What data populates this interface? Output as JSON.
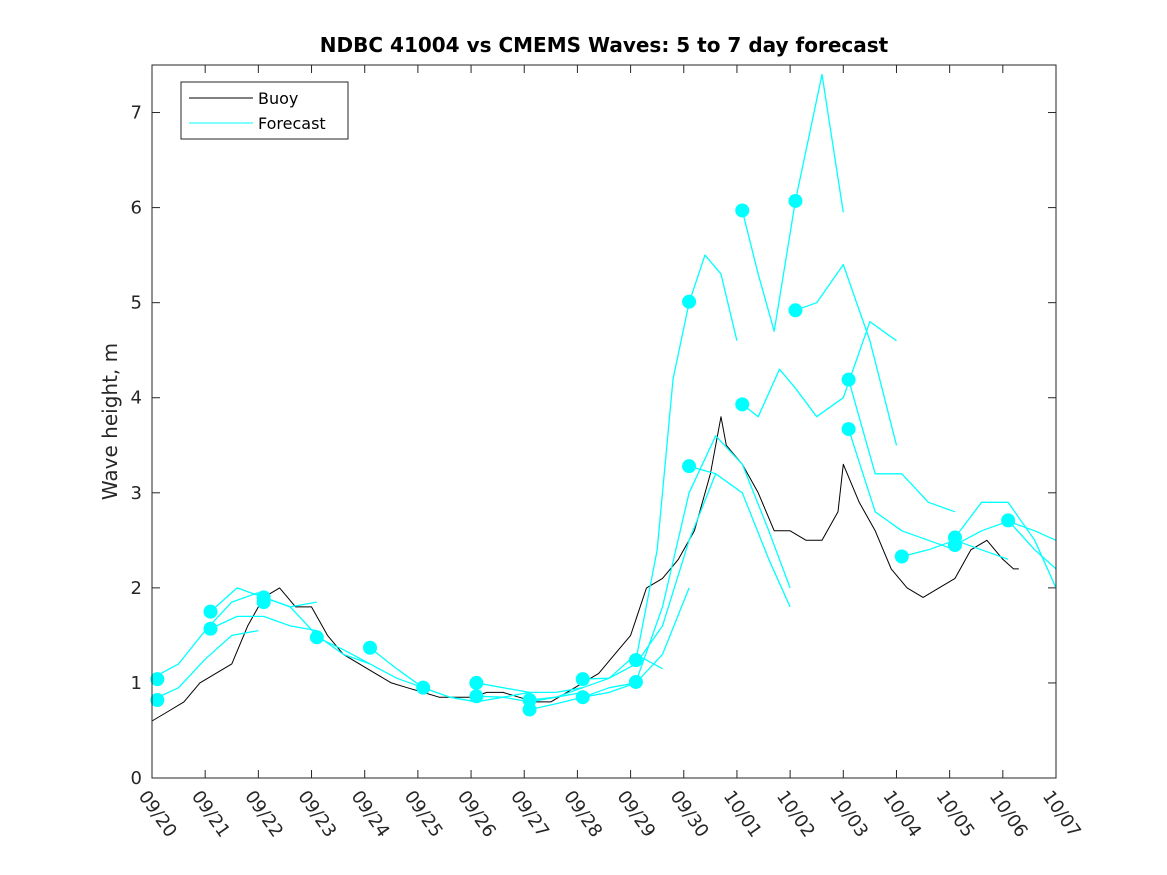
{
  "chart_data": {
    "type": "line",
    "title": "NDBC 41004 vs CMEMS Waves: 5 to 7 day forecast",
    "xlabel": "",
    "ylabel": "Wave height, m",
    "xlim": [
      0,
      17
    ],
    "ylim": [
      0,
      7.5
    ],
    "x_tick_values": [
      0,
      1,
      2,
      3,
      4,
      5,
      6,
      7,
      8,
      9,
      10,
      11,
      12,
      13,
      14,
      15,
      16,
      17
    ],
    "x_tick_labels": [
      "09/20",
      "09/21",
      "09/22",
      "09/23",
      "09/24",
      "09/25",
      "09/26",
      "09/27",
      "09/28",
      "09/29",
      "09/30",
      "10/01",
      "10/02",
      "10/03",
      "10/04",
      "10/05",
      "10/06",
      "10/07"
    ],
    "y_tick_values": [
      0,
      1,
      2,
      3,
      4,
      5,
      6,
      7
    ],
    "y_tick_labels": [
      "0",
      "1",
      "2",
      "3",
      "4",
      "5",
      "6",
      "7"
    ],
    "legend": {
      "position": "top-left",
      "entries": [
        {
          "label": "Buoy",
          "color": "#000000"
        },
        {
          "label": "Forecast",
          "color": "#00ffff"
        }
      ]
    },
    "colors": {
      "buoy": "#000000",
      "forecast": "#00ffff"
    },
    "series": [
      {
        "name": "Buoy",
        "x": [
          0.0,
          0.3,
          0.6,
          0.9,
          1.2,
          1.5,
          1.8,
          2.1,
          2.4,
          2.7,
          3.0,
          3.3,
          3.6,
          3.9,
          4.2,
          4.5,
          4.8,
          5.1,
          5.4,
          5.7,
          6.0,
          6.3,
          6.6,
          6.9,
          7.2,
          7.5,
          7.8,
          8.1,
          8.4,
          8.7,
          9.0,
          9.3,
          9.6,
          9.9,
          10.2,
          10.5,
          10.7,
          10.8,
          11.1,
          11.4,
          11.7,
          12.0,
          12.3,
          12.6,
          12.9,
          13.0,
          13.3,
          13.6,
          13.9,
          14.2,
          14.5,
          14.8,
          15.1,
          15.4,
          15.7,
          16.0,
          16.2,
          16.3
        ],
        "values": [
          0.6,
          0.7,
          0.8,
          1.0,
          1.1,
          1.2,
          1.6,
          1.9,
          2.0,
          1.8,
          1.8,
          1.5,
          1.3,
          1.2,
          1.1,
          1.0,
          0.95,
          0.9,
          0.85,
          0.85,
          0.85,
          0.9,
          0.9,
          0.85,
          0.8,
          0.8,
          0.9,
          1.0,
          1.1,
          1.3,
          1.5,
          2.0,
          2.1,
          2.3,
          2.6,
          3.2,
          3.8,
          3.5,
          3.3,
          3.0,
          2.6,
          2.6,
          2.5,
          2.5,
          2.8,
          3.3,
          2.9,
          2.6,
          2.2,
          2.0,
          1.9,
          2.0,
          2.1,
          2.4,
          2.5,
          2.3,
          2.2,
          2.2
        ]
      },
      {
        "name": "Forecast",
        "x": [
          0.0,
          0.5,
          1.0,
          1.5,
          2.0
        ],
        "values": [
          1.05,
          1.2,
          1.55,
          1.85,
          1.95
        ]
      },
      {
        "name": "Forecast",
        "x": [
          0.0,
          0.5,
          1.0,
          1.5,
          2.0
        ],
        "values": [
          0.82,
          0.95,
          1.25,
          1.5,
          1.55
        ]
      },
      {
        "name": "Forecast",
        "x": [
          1.1,
          1.6,
          2.1,
          2.6,
          3.1
        ],
        "values": [
          1.75,
          2.0,
          1.9,
          1.8,
          1.85
        ]
      },
      {
        "name": "Forecast",
        "x": [
          1.1,
          1.6,
          2.1,
          2.6,
          3.1
        ],
        "values": [
          1.57,
          1.7,
          1.7,
          1.6,
          1.55
        ]
      },
      {
        "name": "Forecast",
        "x": [
          2.1,
          2.6,
          3.1,
          3.6,
          4.1
        ],
        "values": [
          1.9,
          1.8,
          1.5,
          1.3,
          1.2
        ]
      },
      {
        "name": "Forecast",
        "x": [
          3.1,
          3.6,
          4.1,
          4.6,
          5.1
        ],
        "values": [
          1.48,
          1.35,
          1.2,
          1.05,
          0.95
        ]
      },
      {
        "name": "Forecast",
        "x": [
          4.1,
          4.6,
          5.1,
          5.6,
          6.1
        ],
        "values": [
          1.37,
          1.15,
          0.95,
          0.85,
          0.8
        ]
      },
      {
        "name": "Forecast",
        "x": [
          5.1,
          5.6,
          6.1,
          6.6,
          7.1
        ],
        "values": [
          0.95,
          0.85,
          0.8,
          0.85,
          0.9
        ]
      },
      {
        "name": "Forecast",
        "x": [
          6.1,
          6.6,
          7.1,
          7.6,
          8.1
        ],
        "values": [
          1.0,
          0.95,
          0.9,
          0.9,
          0.95
        ]
      },
      {
        "name": "Forecast",
        "x": [
          6.1,
          6.6,
          7.1,
          7.6,
          8.1
        ],
        "values": [
          0.86,
          0.85,
          0.8,
          0.85,
          0.9
        ]
      },
      {
        "name": "Forecast",
        "x": [
          7.1,
          7.6,
          8.1,
          8.6,
          9.1,
          9.6
        ],
        "values": [
          0.82,
          0.85,
          0.95,
          1.05,
          1.3,
          1.15
        ]
      },
      {
        "name": "Forecast",
        "x": [
          7.1,
          7.6,
          8.1,
          8.6,
          9.1
        ],
        "values": [
          0.72,
          0.78,
          0.85,
          0.95,
          1.0
        ]
      },
      {
        "name": "Forecast",
        "x": [
          8.1,
          8.6,
          9.1,
          9.6,
          10.1,
          10.6
        ],
        "values": [
          1.04,
          1.05,
          1.2,
          1.6,
          2.5,
          3.2
        ]
      },
      {
        "name": "Forecast",
        "x": [
          8.1,
          8.6,
          9.1,
          9.6,
          10.1
        ],
        "values": [
          0.85,
          0.9,
          1.0,
          1.3,
          2.0
        ]
      },
      {
        "name": "Forecast",
        "x": [
          9.1,
          9.5,
          9.8,
          10.1,
          10.4,
          10.7,
          11.0
        ],
        "values": [
          1.24,
          2.4,
          4.2,
          5.0,
          5.5,
          5.3,
          4.6
        ]
      },
      {
        "name": "Forecast",
        "x": [
          9.1,
          9.6,
          10.1,
          10.6,
          11.1,
          11.6,
          12.0
        ],
        "values": [
          1.01,
          1.8,
          3.0,
          3.6,
          3.3,
          2.6,
          2.0
        ]
      },
      {
        "name": "Forecast",
        "x": [
          10.1,
          10.6,
          11.1,
          11.6,
          12.0
        ],
        "values": [
          3.28,
          3.2,
          3.0,
          2.3,
          1.8
        ]
      },
      {
        "name": "Forecast",
        "x": [
          11.1,
          11.4,
          11.7,
          12.1,
          12.6,
          13.0
        ],
        "values": [
          5.97,
          5.3,
          4.7,
          6.07,
          7.4,
          5.95
        ]
      },
      {
        "name": "Forecast",
        "x": [
          11.1,
          11.4,
          11.8,
          12.1,
          12.5,
          13.0,
          13.5,
          14.0
        ],
        "values": [
          3.93,
          3.8,
          4.3,
          4.1,
          3.8,
          4.0,
          4.8,
          4.6
        ]
      },
      {
        "name": "Forecast",
        "x": [
          12.1,
          12.5,
          13.0,
          13.5,
          14.0
        ],
        "values": [
          4.92,
          5.0,
          5.4,
          4.6,
          3.5
        ]
      },
      {
        "name": "Forecast",
        "x": [
          13.1,
          13.6,
          14.1,
          14.6,
          15.1
        ],
        "values": [
          4.19,
          3.2,
          3.2,
          2.9,
          2.8
        ]
      },
      {
        "name": "Forecast",
        "x": [
          13.1,
          13.6,
          14.1,
          14.6,
          15.1
        ],
        "values": [
          3.67,
          2.8,
          2.6,
          2.5,
          2.4
        ]
      },
      {
        "name": "Forecast",
        "x": [
          14.1,
          14.6,
          15.1,
          15.6,
          16.1
        ],
        "values": [
          2.33,
          2.4,
          2.5,
          2.4,
          2.3
        ]
      },
      {
        "name": "Forecast",
        "x": [
          15.1,
          15.6,
          16.1,
          16.6,
          17.0
        ],
        "values": [
          2.53,
          2.9,
          2.9,
          2.5,
          2.0
        ]
      },
      {
        "name": "Forecast",
        "x": [
          15.1,
          15.6,
          16.1,
          16.6,
          17.0
        ],
        "values": [
          2.45,
          2.6,
          2.7,
          2.6,
          2.5
        ]
      },
      {
        "name": "Forecast",
        "x": [
          16.1,
          16.6,
          17.0
        ],
        "values": [
          2.71,
          2.4,
          2.2
        ]
      }
    ],
    "markers": {
      "name": "Forecast start",
      "x": [
        0.1,
        0.1,
        1.1,
        1.1,
        2.1,
        2.1,
        3.1,
        4.1,
        5.1,
        6.1,
        6.1,
        7.1,
        7.1,
        8.1,
        8.1,
        9.1,
        9.1,
        10.1,
        10.1,
        11.1,
        11.1,
        12.1,
        12.1,
        13.1,
        13.1,
        14.1,
        15.1,
        15.1,
        16.1
      ],
      "values": [
        1.04,
        0.82,
        1.75,
        1.57,
        1.9,
        1.85,
        1.48,
        1.37,
        0.95,
        1.0,
        0.86,
        0.82,
        0.72,
        1.04,
        0.85,
        1.24,
        1.01,
        5.01,
        3.28,
        5.97,
        3.93,
        6.07,
        4.92,
        4.19,
        3.67,
        2.33,
        2.53,
        2.45,
        2.71
      ]
    }
  }
}
